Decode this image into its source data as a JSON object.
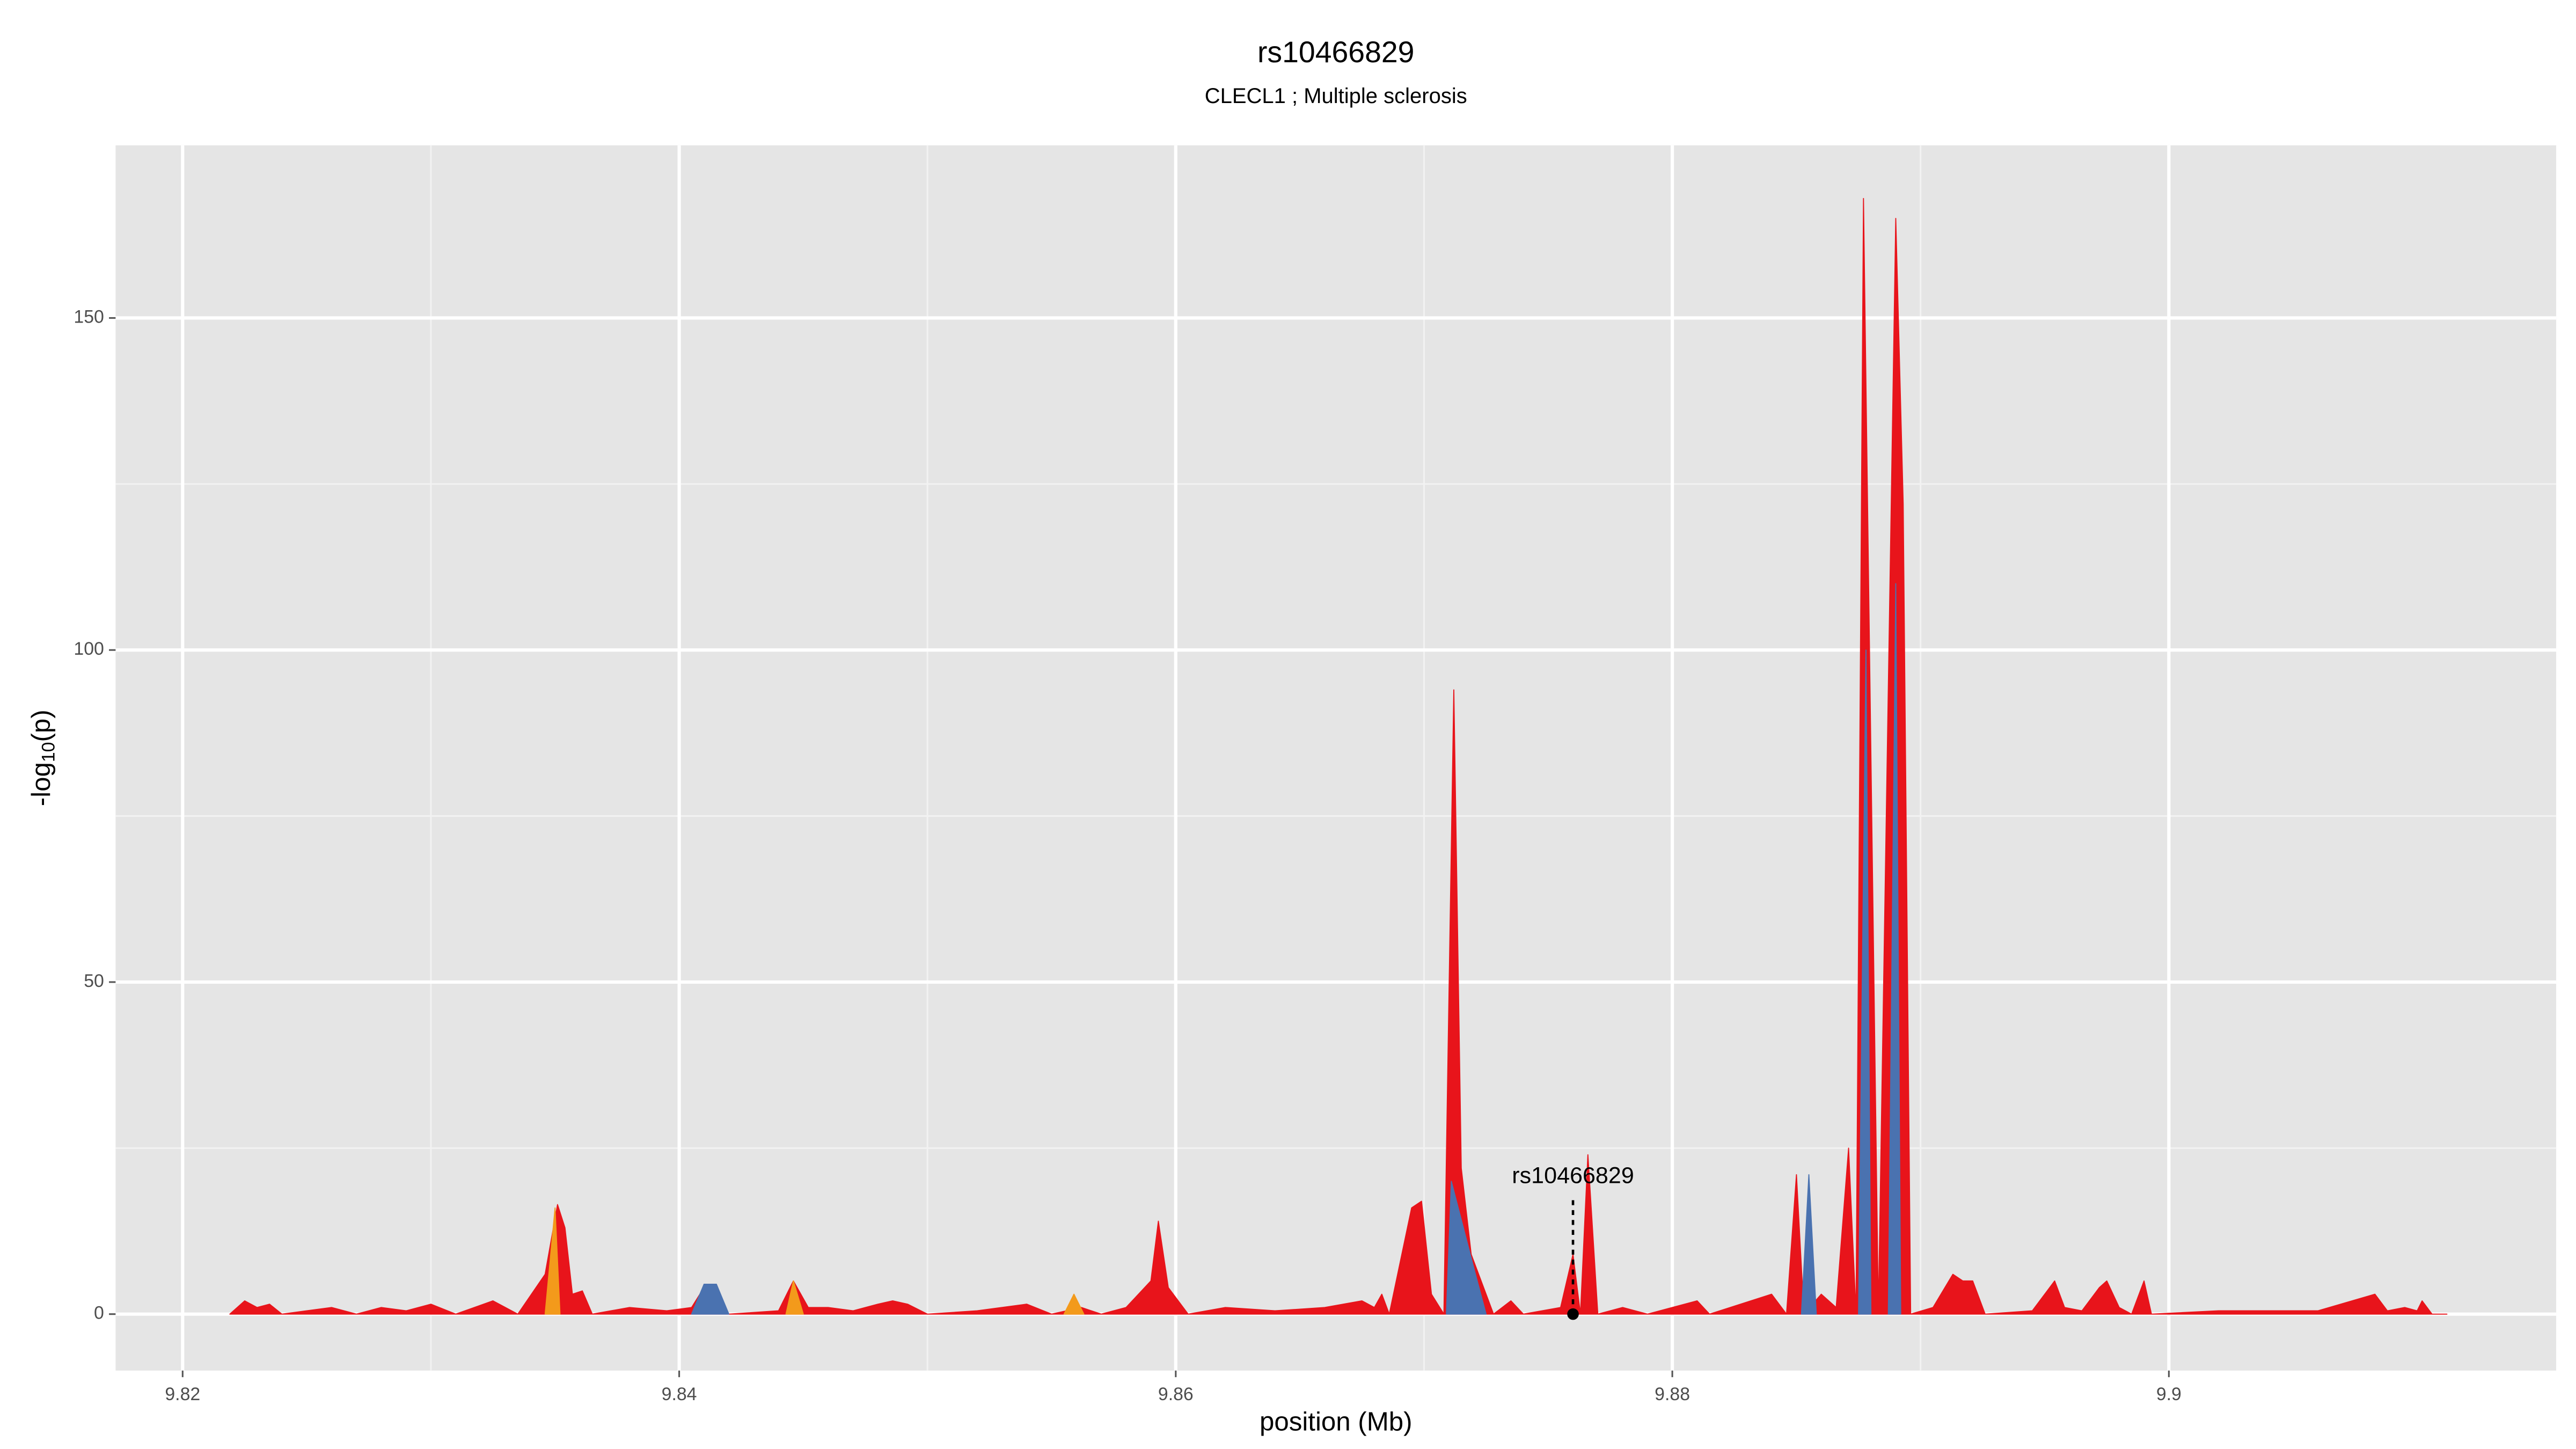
{
  "chart_data": {
    "type": "area",
    "title": "rs10466829",
    "subtitle": "CLECL1 ; Multiple sclerosis",
    "x_label": "position (Mb)",
    "y_label": [
      "-log",
      "10",
      "(p)"
    ],
    "xlim": [
      9.8173,
      9.9156
    ],
    "ylim": [
      -8.5,
      176
    ],
    "xticks": [
      9.82,
      9.84,
      9.86,
      9.88,
      9.9
    ],
    "yticks": [
      0,
      50,
      100,
      150
    ],
    "grid": true,
    "series": [
      {
        "color": "#e8141b",
        "x": [
          9.8219,
          9.8225,
          9.823,
          9.8235,
          9.824,
          9.825,
          9.826,
          9.827,
          9.828,
          9.829,
          9.83,
          9.831,
          9.8325,
          9.8335,
          9.8346,
          9.8351,
          9.8354,
          9.8357,
          9.8361,
          9.8365,
          9.838,
          9.8395,
          9.8405,
          9.841,
          9.8415,
          9.842,
          9.844,
          9.8446,
          9.8452,
          9.846,
          9.847,
          9.848,
          9.8486,
          9.8492,
          9.85,
          9.852,
          9.854,
          9.855,
          9.8562,
          9.857,
          9.858,
          9.859,
          9.8593,
          9.8597,
          9.8605,
          9.862,
          9.864,
          9.866,
          9.8675,
          9.868,
          9.8683,
          9.8686,
          9.8695,
          9.8699,
          9.8703,
          9.8708,
          9.8712,
          9.8715,
          9.8719,
          9.8722,
          9.8728,
          9.8735,
          9.874,
          9.8755,
          9.876,
          9.8763,
          9.8766,
          9.877,
          9.878,
          9.879,
          9.881,
          9.8815,
          9.884,
          9.8846,
          9.885,
          9.8853,
          9.886,
          9.8866,
          9.8871,
          9.8874,
          9.8877,
          9.8883,
          9.889,
          9.8893,
          9.8896,
          9.8905,
          9.8913,
          9.8917,
          9.8921,
          9.8926,
          9.8945,
          9.8954,
          9.8958,
          9.8965,
          9.8972,
          9.8975,
          9.898,
          9.8985,
          9.899,
          9.8993,
          9.902,
          9.906,
          9.9083,
          9.9088,
          9.9095,
          9.91,
          9.9102,
          9.9106,
          9.9112
        ],
        "values": [
          0,
          2,
          1,
          1.5,
          0,
          0.5,
          1,
          0,
          1,
          0.5,
          1.5,
          0,
          2,
          0,
          6,
          16.5,
          13,
          3,
          3.5,
          0,
          1,
          0.5,
          1,
          4,
          3,
          0,
          0.5,
          5,
          1,
          1,
          0.5,
          1.5,
          2,
          1.5,
          0,
          0.5,
          1.5,
          0,
          1,
          0,
          1,
          5,
          14,
          4,
          0,
          1,
          0.5,
          1,
          2,
          1,
          3,
          0,
          16,
          17,
          3,
          0,
          94,
          22,
          9,
          6,
          0,
          2,
          0,
          1,
          9,
          0,
          24,
          0,
          1,
          0,
          2,
          0,
          3,
          0,
          21,
          0,
          3,
          1,
          25,
          0,
          168,
          0,
          165,
          122,
          0,
          1,
          6,
          5,
          5,
          0,
          0.5,
          5,
          1,
          0.5,
          4,
          5,
          1,
          0,
          5,
          0,
          0.5,
          0.5,
          3,
          0.5,
          1,
          0.5,
          2,
          0,
          0
        ]
      },
      {
        "color": "#4a72b0",
        "x": [
          9.8405,
          9.841,
          9.8415,
          9.842,
          9.86,
          9.8709,
          9.8711,
          9.872,
          9.8725,
          9.88,
          9.8852,
          9.8855,
          9.8858,
          9.8865,
          9.8875,
          9.8878,
          9.888,
          9.8885,
          9.8887,
          9.889,
          9.8892
        ],
        "values": [
          0,
          4.5,
          4.5,
          0,
          null,
          0,
          20,
          7,
          0,
          null,
          0,
          21,
          0,
          null,
          0,
          100,
          0,
          null,
          0,
          110,
          0
        ]
      },
      {
        "color": "#f39a1b",
        "x": [
          9.8346,
          9.835,
          9.8352,
          9.84,
          9.8443,
          9.8446,
          9.845,
          9.85,
          9.8555,
          9.8559,
          9.8563
        ],
        "values": [
          0,
          16,
          0,
          null,
          0,
          5,
          0,
          null,
          0,
          3,
          0
        ]
      }
    ],
    "annotation": {
      "label": "rs10466829",
      "x": 9.876,
      "y": 0
    }
  }
}
